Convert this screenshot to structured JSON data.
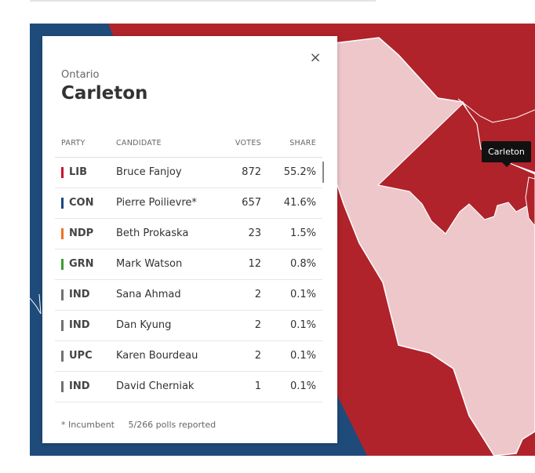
{
  "map": {
    "tooltip": "Carleton",
    "colors": {
      "con": "#1f4b7a",
      "lib": "#b0232b",
      "selected": "#eec7ca",
      "border": "#ffffff"
    }
  },
  "panel": {
    "province": "Ontario",
    "riding": "Carleton",
    "close_label": "×",
    "headers": {
      "party": "PARTY",
      "candidate": "CANDIDATE",
      "votes": "VOTES",
      "share": "SHARE"
    },
    "rows": [
      {
        "party": "LIB",
        "color": "#c8102e",
        "candidate": "Bruce Fanjoy",
        "votes": "872",
        "share": "55.2%"
      },
      {
        "party": "CON",
        "color": "#1a4782",
        "candidate": "Pierre Poilievre*",
        "votes": "657",
        "share": "41.6%"
      },
      {
        "party": "NDP",
        "color": "#f37021",
        "candidate": "Beth Prokaska",
        "votes": "23",
        "share": "1.5%"
      },
      {
        "party": "GRN",
        "color": "#3d9b35",
        "candidate": "Mark Watson",
        "votes": "12",
        "share": "0.8%"
      },
      {
        "party": "IND",
        "color": "#707070",
        "candidate": "Sana Ahmad",
        "votes": "2",
        "share": "0.1%"
      },
      {
        "party": "IND",
        "color": "#707070",
        "candidate": "Dan Kyung",
        "votes": "2",
        "share": "0.1%"
      },
      {
        "party": "UPC",
        "color": "#707070",
        "candidate": "Karen Bourdeau",
        "votes": "2",
        "share": "0.1%"
      },
      {
        "party": "IND",
        "color": "#707070",
        "candidate": "David Cherniak",
        "votes": "1",
        "share": "0.1%"
      }
    ],
    "footer": {
      "incumbent_note": "* Incumbent",
      "polls_reported": "5/266 polls reported"
    }
  }
}
